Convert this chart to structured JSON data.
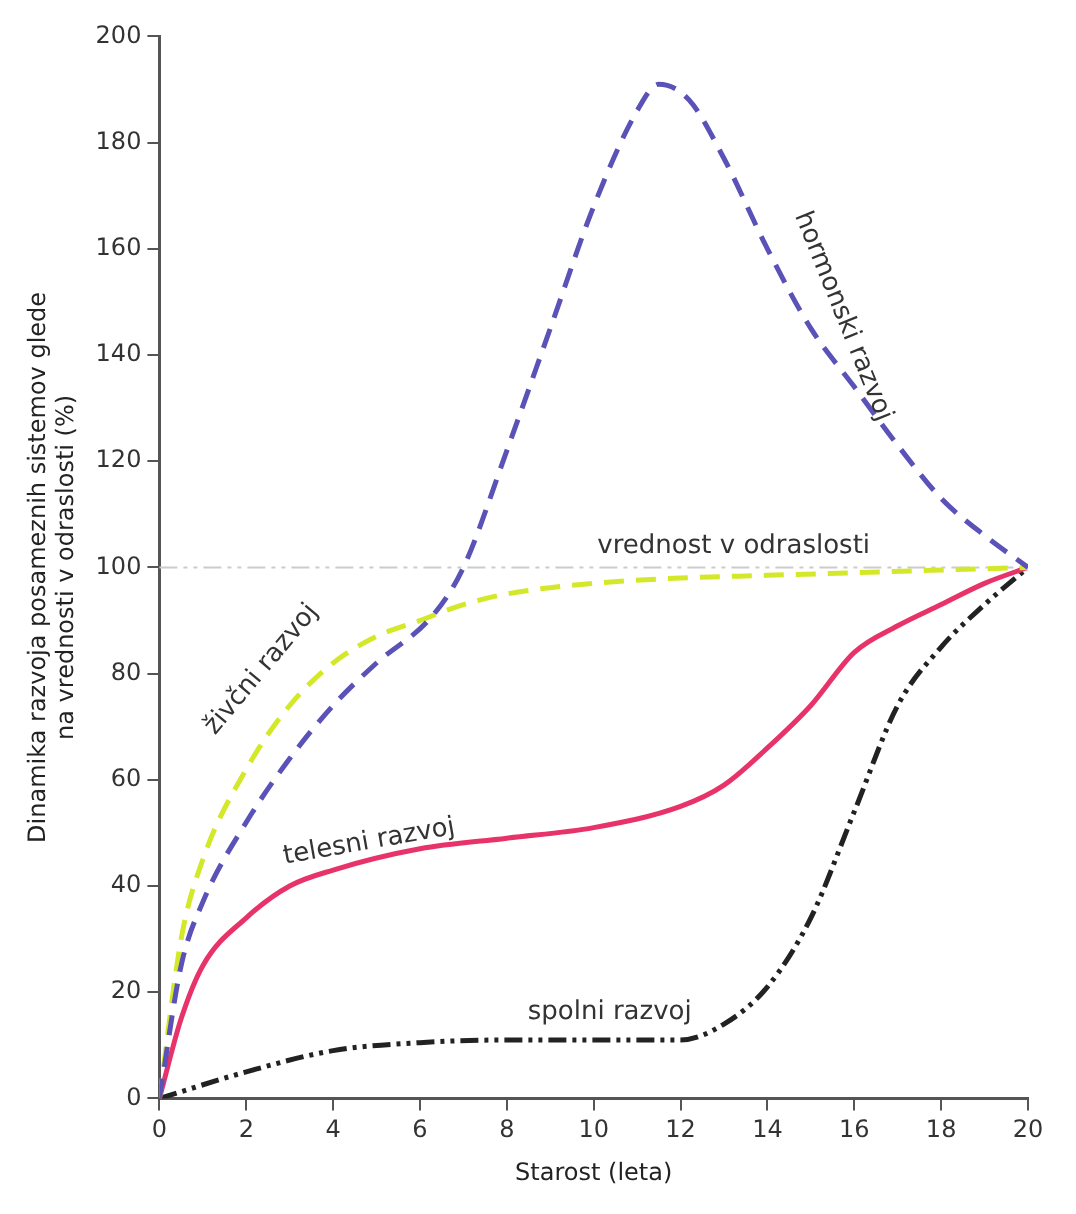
{
  "chart_data": {
    "type": "line",
    "xlabel": "Starost (leta)",
    "ylabel": "Dinamika razvoja posameznih sistemov glede na vrednosti v odraslosti (%)",
    "xlim": [
      0,
      20
    ],
    "xticks": [
      0,
      2,
      4,
      6,
      8,
      10,
      12,
      14,
      16,
      18,
      20
    ],
    "ylim": [
      0,
      200
    ],
    "yticks": [
      0,
      20,
      40,
      60,
      80,
      100,
      120,
      140,
      160,
      180,
      200
    ],
    "grid": false,
    "legend": false,
    "marker": "none",
    "ref_lines": [
      {
        "axis": "y",
        "value": 100,
        "label": "vrednost v odraslosti",
        "color": "#cccccc",
        "line_style": "dotted"
      }
    ],
    "series": [
      {
        "name": "hormonski razvoj",
        "color": "#5b52b8",
        "line_style": "dashed",
        "x": [
          0,
          0.5,
          1,
          2,
          3,
          4,
          5,
          6.3,
          7,
          8,
          9,
          10,
          11,
          11.5,
          12.2,
          13,
          14,
          15,
          16,
          17,
          18,
          19,
          20
        ],
        "values": [
          0,
          25,
          37,
          52,
          64,
          74,
          82,
          91,
          100,
          122,
          145,
          168,
          186,
          191,
          188,
          177,
          160,
          145,
          134,
          123,
          113,
          106,
          100
        ]
      },
      {
        "name": "živčni razvoj",
        "color": "#d4e82a",
        "line_style": "dashed",
        "x": [
          0,
          0.5,
          1,
          2,
          3,
          4,
          5,
          6,
          7,
          8,
          10,
          12,
          14,
          16,
          18,
          20
        ],
        "values": [
          0,
          30,
          45,
          62,
          74,
          82,
          87,
          90,
          93,
          95,
          97,
          98,
          98.5,
          99,
          99.5,
          100
        ]
      },
      {
        "name": "telesni razvoj",
        "color": "#e8336a",
        "line_style": "solid",
        "x": [
          0,
          0.5,
          1,
          2,
          3,
          4,
          6,
          8,
          10,
          12,
          13,
          14,
          15,
          16,
          17,
          18,
          19,
          20
        ],
        "values": [
          0,
          15,
          25,
          34,
          40,
          43,
          47,
          49,
          51,
          55,
          59,
          66,
          74,
          84,
          89,
          93,
          97,
          100
        ]
      },
      {
        "name": "spolni razvoj",
        "color": "#222222",
        "line_style": "dotted",
        "x": [
          0,
          2,
          4,
          6,
          8,
          10,
          12,
          13,
          14,
          15,
          16,
          17,
          18,
          19,
          20
        ],
        "values": [
          0,
          5,
          9,
          10.5,
          11,
          11,
          11,
          14,
          21,
          34,
          54,
          74,
          85,
          93,
          100
        ]
      }
    ]
  }
}
